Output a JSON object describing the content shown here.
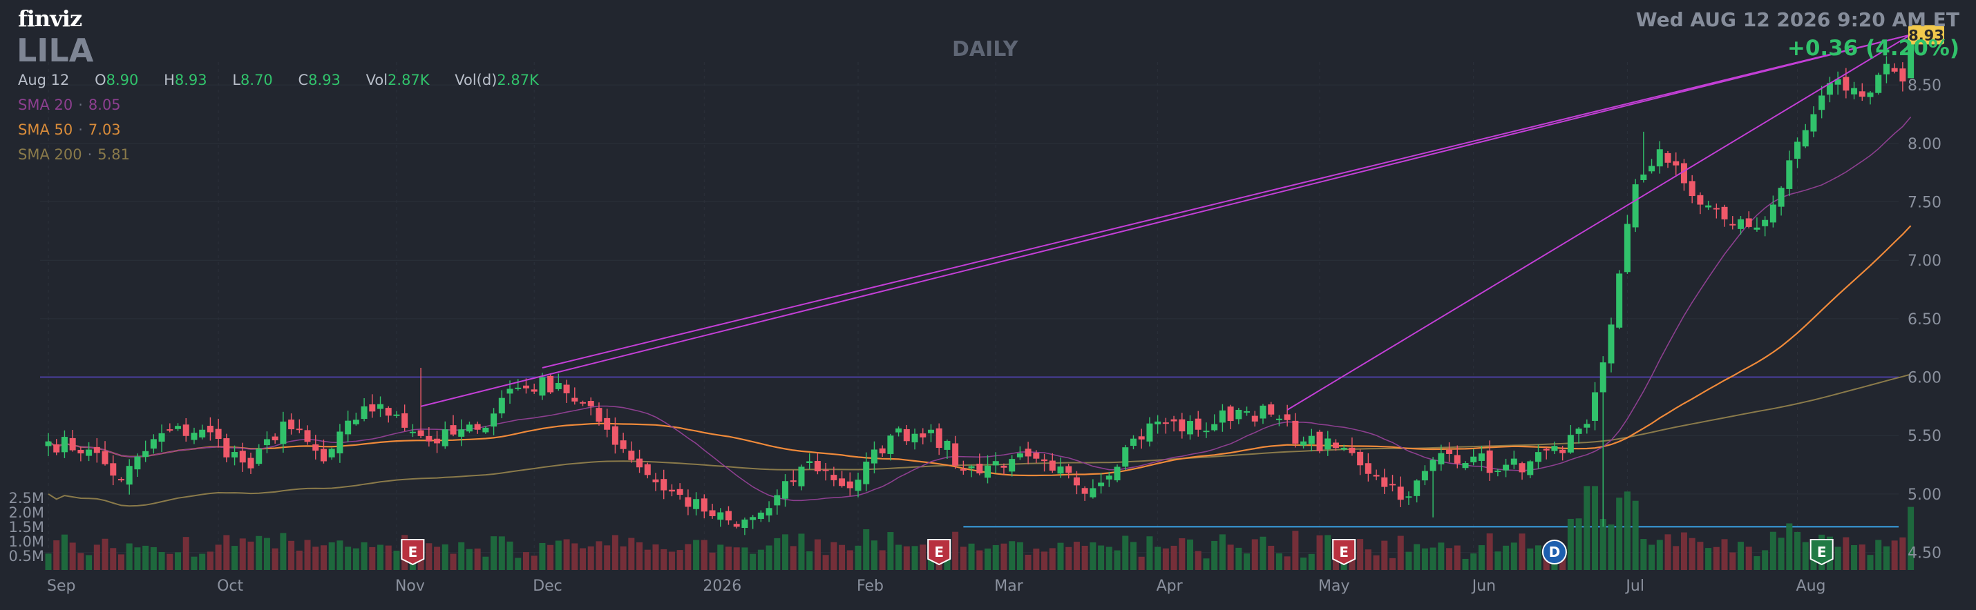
{
  "header": {
    "logo": "finviz",
    "ticker": "LILA",
    "period": "DAILY",
    "datetime": "Wed AUG 12 2026 9:20 AM ET",
    "change": "+0.36 (4.20%)"
  },
  "ohlc": {
    "date": "Aug 12",
    "open_label": "O",
    "open": "8.90",
    "high_label": "H",
    "high": "8.93",
    "low_label": "L",
    "low": "8.70",
    "close_label": "C",
    "close": "8.93",
    "vol_label": "Vol",
    "vol": "2.87K",
    "vold_label": "Vol(d)",
    "vold": "2.87K"
  },
  "sma": {
    "sma20_label": "SMA 20",
    "sma20_value": "8.05",
    "sma50_label": "SMA 50",
    "sma50_value": "7.03",
    "sma200_label": "SMA 200",
    "sma200_value": "5.81"
  },
  "colors": {
    "background": "#22262f",
    "up": "#31c26b",
    "down": "#f0596a",
    "sma20": "#8c3f8f",
    "sma50": "#f08a3a",
    "sma200": "#8a7a4a",
    "trendline": "#c33fd6",
    "last_price_tag": "#f2c94c"
  },
  "chart_data": {
    "type": "candlestick",
    "title": "LILA",
    "price_axis": {
      "ticks": [
        "4.50",
        "5.00",
        "5.50",
        "6.00",
        "6.50",
        "7.00",
        "7.50",
        "8.00",
        "8.50"
      ],
      "range": [
        4.35,
        9.05
      ],
      "last_price": "8.93"
    },
    "volume_axis": {
      "ticks": [
        "0.5M",
        "1.0M",
        "1.5M",
        "2.0M",
        "2.5M"
      ],
      "range": [
        0,
        3.1
      ]
    },
    "x_axis": {
      "labels": [
        {
          "label": "Sep",
          "day": 0
        },
        {
          "label": "Oct",
          "day": 21
        },
        {
          "label": "Nov",
          "day": 43
        },
        {
          "label": "Dec",
          "day": 60
        },
        {
          "label": "2026",
          "day": 81
        },
        {
          "label": "Feb",
          "day": 100
        },
        {
          "label": "Mar",
          "day": 117
        },
        {
          "label": "Apr",
          "day": 137
        },
        {
          "label": "May",
          "day": 157
        },
        {
          "label": "Jun",
          "day": 176
        },
        {
          "label": "Jul",
          "day": 195
        },
        {
          "label": "Aug",
          "day": 216
        }
      ]
    },
    "anchors": [
      [
        0,
        5.45
      ],
      [
        5,
        5.38
      ],
      [
        9,
        5.12
      ],
      [
        14,
        5.52
      ],
      [
        19,
        5.55
      ],
      [
        25,
        5.22
      ],
      [
        29,
        5.62
      ],
      [
        34,
        5.28
      ],
      [
        39,
        5.75
      ],
      [
        43,
        5.68
      ],
      [
        47,
        5.45
      ],
      [
        53,
        5.55
      ],
      [
        57,
        5.9
      ],
      [
        63,
        5.95
      ],
      [
        69,
        5.55
      ],
      [
        75,
        5.1
      ],
      [
        81,
        4.85
      ],
      [
        85,
        4.72
      ],
      [
        89,
        4.88
      ],
      [
        94,
        5.28
      ],
      [
        99,
        5.05
      ],
      [
        104,
        5.5
      ],
      [
        109,
        5.55
      ],
      [
        113,
        5.2
      ],
      [
        119,
        5.3
      ],
      [
        124,
        5.2
      ],
      [
        129,
        5.05
      ],
      [
        133,
        5.4
      ],
      [
        137,
        5.62
      ],
      [
        142,
        5.55
      ],
      [
        147,
        5.72
      ],
      [
        151,
        5.68
      ],
      [
        155,
        5.45
      ],
      [
        161,
        5.35
      ],
      [
        164,
        5.15
      ],
      [
        168,
        4.98
      ],
      [
        172,
        5.35
      ],
      [
        176,
        5.32
      ],
      [
        179,
        5.2
      ],
      [
        183,
        5.28
      ],
      [
        187,
        5.35
      ],
      [
        190,
        5.6
      ],
      [
        193,
        6.45
      ],
      [
        196,
        7.65
      ],
      [
        199,
        7.95
      ],
      [
        203,
        7.55
      ],
      [
        207,
        7.35
      ],
      [
        211,
        7.28
      ],
      [
        214,
        7.62
      ],
      [
        218,
        8.25
      ],
      [
        221,
        8.55
      ],
      [
        224,
        8.4
      ],
      [
        227,
        8.68
      ],
      [
        229,
        8.53
      ],
      [
        230,
        8.93
      ]
    ],
    "earnings_markers": [
      {
        "label": "E",
        "day": 45
      },
      {
        "label": "E",
        "day": 110
      },
      {
        "label": "E",
        "day": 160
      },
      {
        "label": "E",
        "day": 219
      }
    ],
    "dividend_markers": [
      {
        "label": "D",
        "day": 186
      }
    ],
    "horizontal_lines": [
      {
        "name": "resistance",
        "price": 6.0
      },
      {
        "name": "support",
        "price": 4.72,
        "from_day": 113
      }
    ],
    "trendlines": [
      {
        "from_day": 46,
        "from_price": 5.75,
        "to_day": 230,
        "to_price": 8.93
      },
      {
        "from_day": 61,
        "from_price": 6.08,
        "to_day": 230,
        "to_price": 8.93
      },
      {
        "from_day": 153,
        "from_price": 5.72,
        "to_day": 230,
        "to_price": 8.93
      }
    ]
  }
}
